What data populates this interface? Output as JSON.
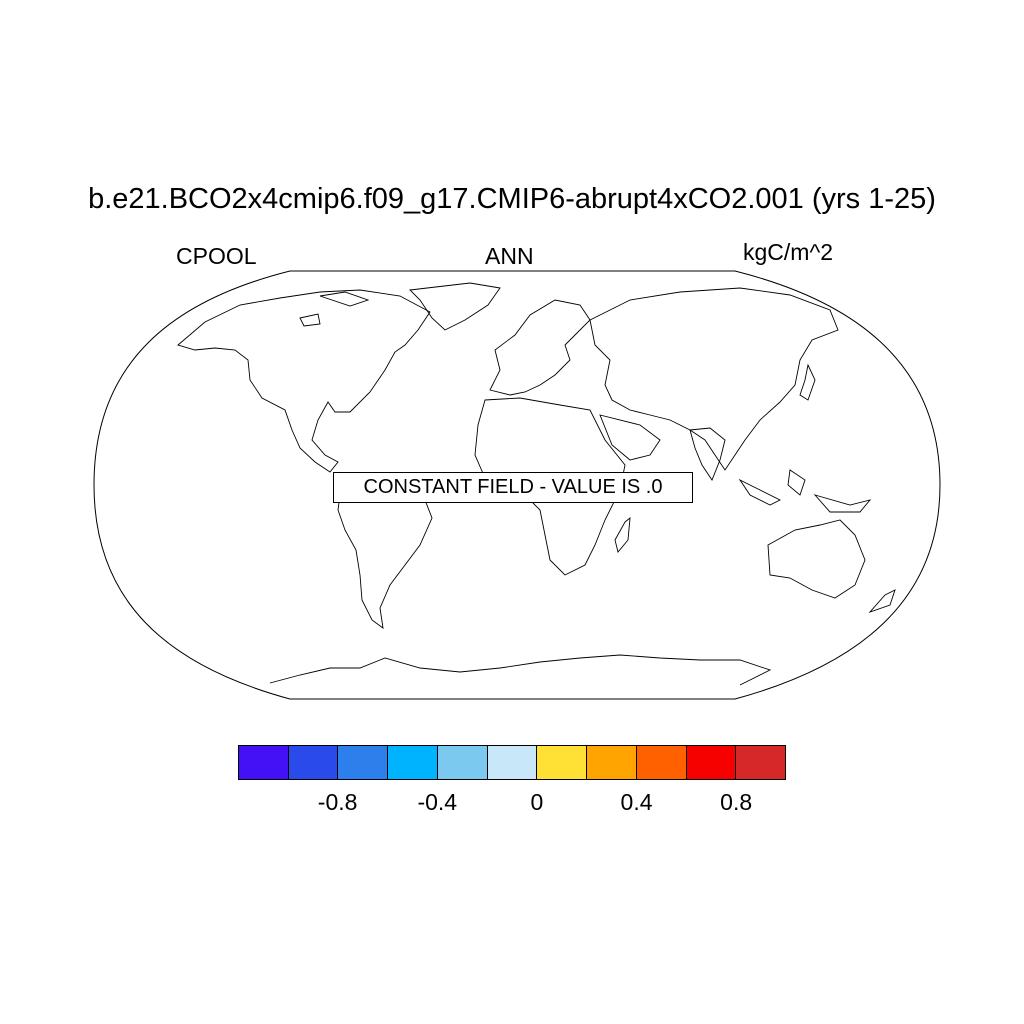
{
  "title": "b.e21.BCO2x4cmip6.f09_g17.CMIP6-abrupt4xCO2.001 (yrs 1-25)",
  "left_label": "CPOOL",
  "center_label": "ANN",
  "right_label": "kgC/m^2",
  "notice": "CONSTANT FIELD - VALUE IS .0",
  "map": {
    "projection": "Robinson",
    "content": "coastlines"
  },
  "colorbar": {
    "colors": [
      "#4410F5",
      "#2B4AEA",
      "#2D7FEB",
      "#00B3FE",
      "#7CC9F0",
      "#C8E7F8",
      "#FFE135",
      "#FFA400",
      "#FF6000",
      "#F70000",
      "#D62828"
    ],
    "tick_labels": [
      "-0.8",
      "-0.4",
      "0",
      "0.4",
      "0.8"
    ]
  }
}
